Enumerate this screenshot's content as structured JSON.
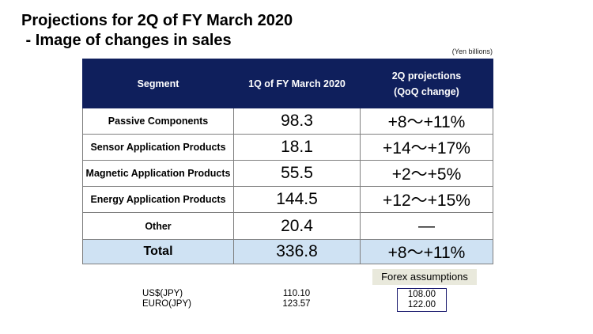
{
  "title": {
    "line1": "Projections for 2Q of FY March 2020",
    "line2": " - Image of changes in sales"
  },
  "unit_note": "(Yen billions)",
  "table": {
    "headers": {
      "segment": "Segment",
      "q1": "1Q of FY March 2020",
      "q2_line1": "2Q projections",
      "q2_line2": "(QoQ change)"
    },
    "rows": [
      {
        "segment": "Passive Components",
        "q1": "98.3",
        "q2": "+8～+11%"
      },
      {
        "segment": "Sensor Application Products",
        "q1": "18.1",
        "q2": "+14～+17%"
      },
      {
        "segment": "Magnetic Application Products",
        "q1": "55.5",
        "q2": "+2～+5%"
      },
      {
        "segment": "Energy Application Products",
        "q1": "144.5",
        "q2": "+12～+15%"
      },
      {
        "segment": "Other",
        "q1": "20.4",
        "q2": "—"
      }
    ],
    "total": {
      "segment": "Total",
      "q1": "336.8",
      "q2": "+8～+11%"
    }
  },
  "forex": {
    "label": "Forex assumptions",
    "rows": [
      {
        "currency": "US$(JPY)",
        "q1": "110.10",
        "q2": "108.00"
      },
      {
        "currency": "EURO(JPY)",
        "q1": "123.57",
        "q2": "122.00"
      }
    ]
  }
}
